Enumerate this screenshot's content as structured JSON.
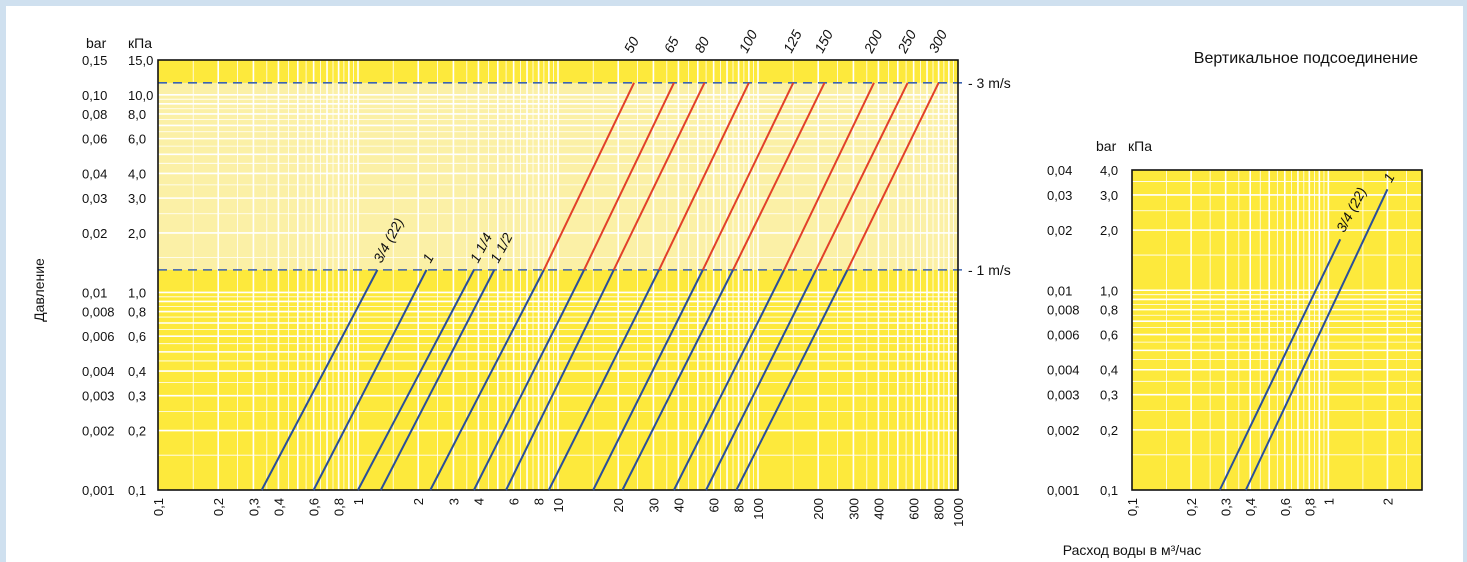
{
  "colors": {
    "plot_light_yellow": "#fbf0a6",
    "plot_yellow": "#fde93c",
    "grid": "#ffffff",
    "line_blue": "#2a4f9a",
    "line_red": "#e2412a",
    "dashed": "#3b63b0",
    "frame": "#cfe0ef"
  },
  "left_chart": {
    "unit_bar": "bar",
    "unit_kpa": "кПа",
    "y_axis_label": "Давление",
    "x_axis_label": "Расход воды в м³/час",
    "velocity_labels": [
      "- 3 m/s",
      "- 1 m/s"
    ]
  },
  "right_chart": {
    "title": "Вертикальное подсоединение",
    "unit_bar": "bar",
    "unit_kpa": "кПа"
  },
  "chart_data": [
    {
      "type": "line",
      "x_scale": "log",
      "y_scale": "log",
      "xlim": [
        0.1,
        1000
      ],
      "ylim_kpa": [
        0.1,
        15
      ],
      "grid": true,
      "xlabel": "Расход воды в м³/час",
      "ylabel": "Давление",
      "x_tick_labels": [
        "0,1",
        "0,2",
        "0,3",
        "0,4",
        "0,6",
        "0,8",
        "1",
        "2",
        "3",
        "4",
        "6",
        "8",
        "10",
        "20",
        "30",
        "40",
        "60",
        "80",
        "100",
        "200",
        "300",
        "400",
        "600",
        "800",
        "1000"
      ],
      "x_tick_values": [
        0.1,
        0.2,
        0.3,
        0.4,
        0.6,
        0.8,
        1,
        2,
        3,
        4,
        6,
        8,
        10,
        20,
        30,
        40,
        60,
        80,
        100,
        200,
        300,
        400,
        600,
        800,
        1000
      ],
      "y_ticks": [
        {
          "bar": "0,001",
          "kpa": "0,1",
          "value": 0.1
        },
        {
          "bar": "0,002",
          "kpa": "0,2",
          "value": 0.2
        },
        {
          "bar": "0,003",
          "kpa": "0,3",
          "value": 0.3
        },
        {
          "bar": "0,004",
          "kpa": "0,4",
          "value": 0.4
        },
        {
          "bar": "0,006",
          "kpa": "0,6",
          "value": 0.6
        },
        {
          "bar": "0,008",
          "kpa": "0,8",
          "value": 0.8
        },
        {
          "bar": "0,01",
          "kpa": "1,0",
          "value": 1.0
        },
        {
          "bar": "0,02",
          "kpa": "2,0",
          "value": 2.0
        },
        {
          "bar": "0,03",
          "kpa": "3,0",
          "value": 3.0
        },
        {
          "bar": "0,04",
          "kpa": "4,0",
          "value": 4.0
        },
        {
          "bar": "0,06",
          "kpa": "6,0",
          "value": 6.0
        },
        {
          "bar": "0,08",
          "kpa": "8,0",
          "value": 8.0
        },
        {
          "bar": "0,10",
          "kpa": "10,0",
          "value": 10.0
        },
        {
          "bar": "0,15",
          "kpa": "15,0",
          "value": 15.0
        }
      ],
      "velocity_lines": [
        {
          "label": "- 3 m/s",
          "y_kpa": 11.5
        },
        {
          "label": "- 1 m/s",
          "y_kpa": 1.3
        }
      ],
      "series": [
        {
          "name": "3/4 (22)",
          "points": [
            [
              0.33,
              0.1
            ],
            [
              1.25,
              1.3
            ]
          ]
        },
        {
          "name": "1",
          "points": [
            [
              0.6,
              0.1
            ],
            [
              2.2,
              1.3
            ]
          ]
        },
        {
          "name": "1 1/4",
          "points": [
            [
              1.0,
              0.1
            ],
            [
              3.8,
              1.3
            ]
          ]
        },
        {
          "name": "1 1/2",
          "points": [
            [
              1.3,
              0.1
            ],
            [
              4.8,
              1.3
            ]
          ]
        },
        {
          "name": "50",
          "points": [
            [
              2.3,
              0.1
            ],
            [
              8.5,
              1.3
            ],
            [
              24,
              11.5
            ]
          ]
        },
        {
          "name": "65",
          "points": [
            [
              3.8,
              0.1
            ],
            [
              13.5,
              1.3
            ],
            [
              38,
              11.5
            ]
          ]
        },
        {
          "name": "80",
          "points": [
            [
              5.5,
              0.1
            ],
            [
              19,
              1.3
            ],
            [
              54,
              11.5
            ]
          ]
        },
        {
          "name": "100",
          "points": [
            [
              9,
              0.1
            ],
            [
              32,
              1.3
            ],
            [
              90,
              11.5
            ]
          ]
        },
        {
          "name": "125",
          "points": [
            [
              15,
              0.1
            ],
            [
              53,
              1.3
            ],
            [
              150,
              11.5
            ]
          ]
        },
        {
          "name": "150",
          "points": [
            [
              21,
              0.1
            ],
            [
              75,
              1.3
            ],
            [
              215,
              11.5
            ]
          ]
        },
        {
          "name": "200",
          "points": [
            [
              38,
              0.1
            ],
            [
              135,
              1.3
            ],
            [
              380,
              11.5
            ]
          ]
        },
        {
          "name": "250",
          "points": [
            [
              55,
              0.1
            ],
            [
              195,
              1.3
            ],
            [
              560,
              11.5
            ]
          ]
        },
        {
          "name": "300",
          "points": [
            [
              78,
              0.1
            ],
            [
              280,
              1.3
            ],
            [
              800,
              11.5
            ]
          ]
        }
      ]
    },
    {
      "type": "line",
      "x_scale": "log",
      "y_scale": "log",
      "title": "Вертикальное подсоединение",
      "xlim": [
        0.1,
        3
      ],
      "ylim_kpa": [
        0.1,
        4
      ],
      "grid": true,
      "x_tick_labels": [
        "0,1",
        "0,2",
        "0,3",
        "0,4",
        "0,6",
        "0,8",
        "1",
        "2"
      ],
      "x_tick_values": [
        0.1,
        0.2,
        0.3,
        0.4,
        0.6,
        0.8,
        1,
        2
      ],
      "y_ticks": [
        {
          "bar": "0,001",
          "kpa": "0,1",
          "value": 0.1
        },
        {
          "bar": "0,002",
          "kpa": "0,2",
          "value": 0.2
        },
        {
          "bar": "0,003",
          "kpa": "0,3",
          "value": 0.3
        },
        {
          "bar": "0,004",
          "kpa": "0,4",
          "value": 0.4
        },
        {
          "bar": "0,006",
          "kpa": "0,6",
          "value": 0.6
        },
        {
          "bar": "0,008",
          "kpa": "0,8",
          "value": 0.8
        },
        {
          "bar": "0,01",
          "kpa": "1,0",
          "value": 1.0
        },
        {
          "bar": "0,02",
          "kpa": "2,0",
          "value": 2.0
        },
        {
          "bar": "0,03",
          "kpa": "3,0",
          "value": 3.0
        },
        {
          "bar": "0,04",
          "kpa": "4,0",
          "value": 4.0
        }
      ],
      "series": [
        {
          "name": "3/4 (22)",
          "points": [
            [
              0.28,
              0.1
            ],
            [
              1.15,
              1.8
            ]
          ]
        },
        {
          "name": "1",
          "points": [
            [
              0.38,
              0.1
            ],
            [
              2.0,
              3.2
            ]
          ]
        }
      ]
    }
  ]
}
